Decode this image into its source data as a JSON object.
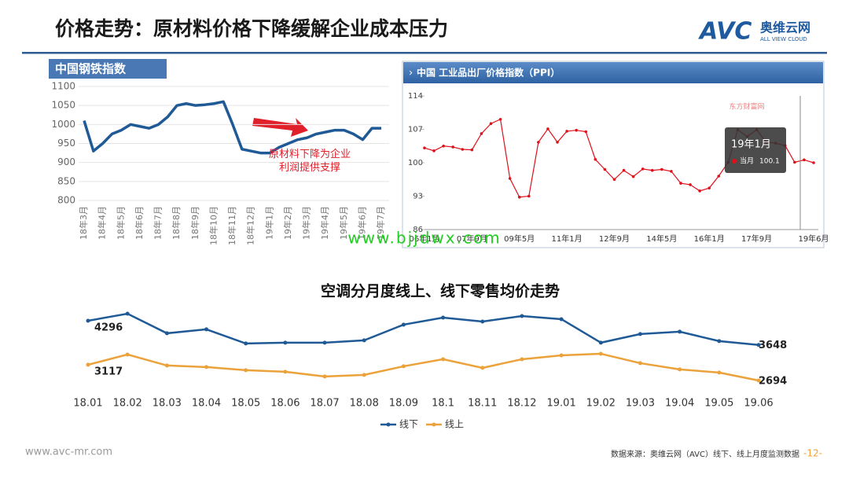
{
  "header": {
    "title": "价格走势：原材料价格下降缓解企业成本压力",
    "logo": "AVC",
    "logo_cn": "奥维云网",
    "logo_en": "ALL VIEW CLOUD"
  },
  "chart_data": [
    {
      "type": "line",
      "title": "中国钢铁指数",
      "categories": [
        "18年3月",
        null,
        "18年4月",
        null,
        "18年5月",
        null,
        "18年6月",
        null,
        "18年7月",
        null,
        "18年8月",
        null,
        "18年9月",
        null,
        "18年10月",
        null,
        "18年11月",
        null,
        "18年12月",
        null,
        "19年1月",
        null,
        "19年2月",
        null,
        "19年3月",
        null,
        "19年4月",
        null,
        "19年5月",
        null,
        "19年6月",
        null,
        "19年7月"
      ],
      "values": [
        1010,
        930,
        950,
        975,
        985,
        1000,
        995,
        990,
        1000,
        1020,
        1050,
        1055,
        1050,
        1052,
        1055,
        1060,
        1000,
        935,
        930,
        925,
        925,
        940,
        950,
        960,
        965,
        975,
        980,
        985,
        985,
        975,
        960,
        990,
        990
      ],
      "color": "#1f5a96",
      "ylim": [
        800,
        1100
      ],
      "yticks": [
        800,
        850,
        900,
        950,
        1000,
        1050,
        1100
      ],
      "grid": true,
      "annotation": "原材料下降为企业利润提供支撑"
    },
    {
      "type": "line",
      "title": "中国 工业品出厂价格指数（PPI）",
      "categories": [
        "06年1月",
        null,
        null,
        null,
        null,
        "07年9月",
        null,
        null,
        null,
        null,
        "09年5月",
        null,
        null,
        null,
        null,
        "11年1月",
        null,
        null,
        null,
        null,
        "12年9月",
        null,
        null,
        null,
        null,
        "14年5月",
        null,
        null,
        null,
        null,
        "16年1月",
        null,
        null,
        null,
        null,
        "17年9月",
        null,
        null,
        null,
        null,
        null,
        "19年6月"
      ],
      "values": [
        103.1,
        102.5,
        103.5,
        103.3,
        102.8,
        102.7,
        106.1,
        108.2,
        109.1,
        96.7,
        92.8,
        93.0,
        104.3,
        107.1,
        104.3,
        106.6,
        106.8,
        106.5,
        100.7,
        98.6,
        96.5,
        98.4,
        97.1,
        98.7,
        98.4,
        98.6,
        98.2,
        95.7,
        95.4,
        94.1,
        94.7,
        97.2,
        100.1,
        106.9,
        105.5,
        106.9,
        104.3,
        104.1,
        103.6,
        100.1,
        100.6,
        100.0
      ],
      "color": "#e0101a",
      "ylim": [
        86,
        114
      ],
      "yticks": [
        86,
        93,
        100,
        107,
        114
      ],
      "grid": false,
      "source": "东方财富网",
      "tooltip": {
        "title": "19年1月",
        "label": "当月",
        "value": 100.1
      }
    },
    {
      "type": "line",
      "title": "空调分月度线上、线下零售均价走势",
      "categories": [
        "18.01",
        "18.02",
        "18.03",
        "18.04",
        "18.05",
        "18.06",
        "18.07",
        "18.08",
        "18.09",
        "18.1",
        "18.11",
        "18.12",
        "19.01",
        "19.02",
        "19.03",
        "19.04",
        "19.05",
        "19.06"
      ],
      "series": [
        {
          "name": "线下",
          "color": "#1f5a96",
          "values": [
            4296,
            4485,
            3960,
            4065,
            3687,
            3708,
            3708,
            3771,
            4191,
            4380,
            4275,
            4422,
            4338,
            3708,
            3939,
            4002,
            3750,
            3648
          ]
        },
        {
          "name": "线上",
          "color": "#eba23a",
          "values": [
            3117,
            3390,
            3096,
            3054,
            2970,
            2928,
            2802,
            2844,
            3075,
            3264,
            3033,
            3264,
            3369,
            3411,
            3159,
            2991,
            2907,
            2694
          ]
        }
      ],
      "legend": "bottom"
    }
  ],
  "watermark": "www.bjjdwx.com",
  "footer": {
    "site": "www.avc-mr.com",
    "source": "数据来源：奥维云网（AVC）线下、线上月度监测数据",
    "page": "-12-"
  }
}
